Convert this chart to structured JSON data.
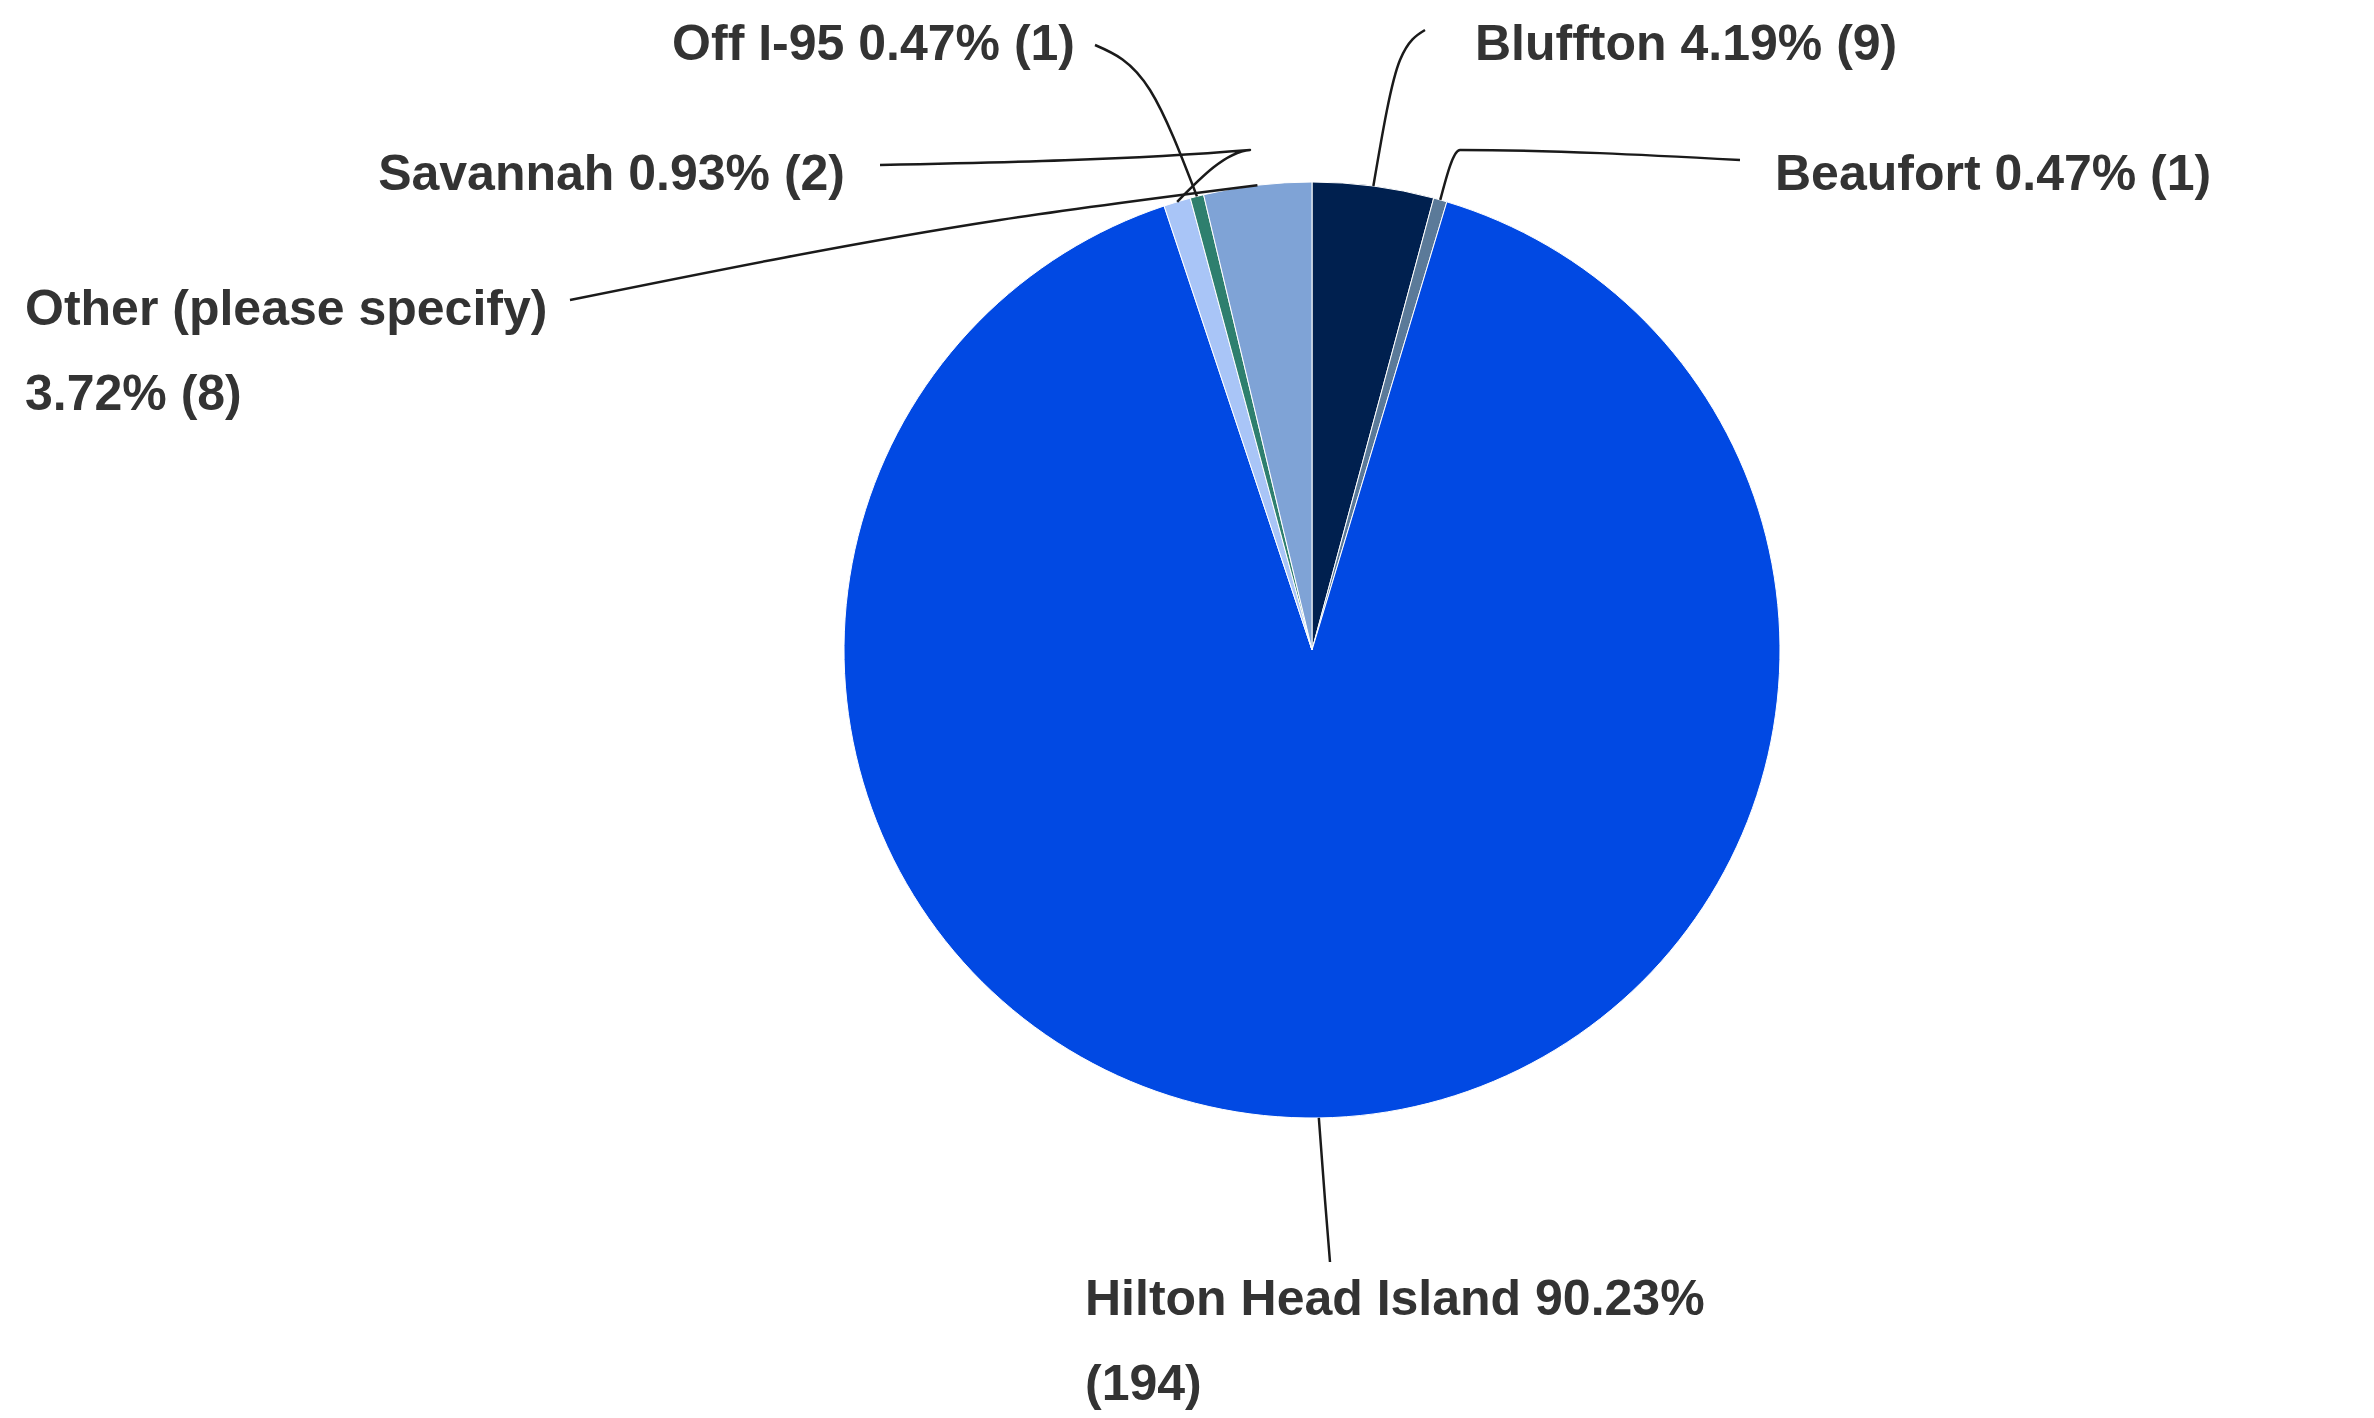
{
  "chart_data": {
    "type": "pie",
    "categories": [
      "Bluffton",
      "Beaufort",
      "Hilton Head Island",
      "Savannah",
      "Off I-95",
      "Other (please specify)"
    ],
    "values": [
      9,
      1,
      194,
      2,
      1,
      8
    ],
    "value_labels": [
      "4.19% (9)",
      "0.47% (1)",
      "90.23% (194)",
      "0.93% (2)",
      "0.47% (1)",
      "3.72% (8)"
    ],
    "colors": [
      "#00204f",
      "#5b7a99",
      "#0149e3",
      "#a9c5f7",
      "#2e7f6e",
      "#7fa3d6"
    ]
  }
}
